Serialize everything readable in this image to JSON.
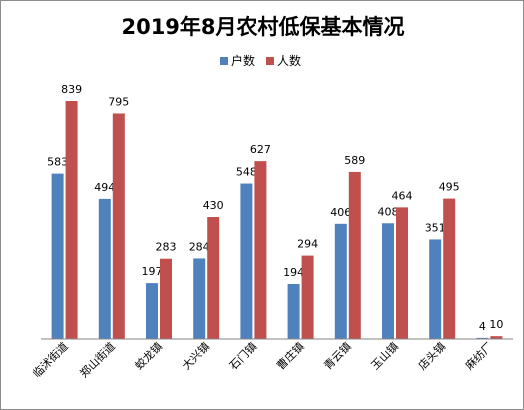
{
  "chart_data": {
    "type": "bar",
    "title": "2019年8月农村低保基本情况",
    "categories": [
      "临沭街道",
      "郑山街道",
      "蛟龙镇",
      "大兴镇",
      "石门镇",
      "曹庄镇",
      "青云镇",
      "玉山镇",
      "店头镇",
      "麻纺厂"
    ],
    "series": [
      {
        "name": "户数",
        "color": "#4F81BD",
        "values": [
          583,
          494,
          197,
          284,
          548,
          194,
          406,
          408,
          351,
          4
        ]
      },
      {
        "name": "人数",
        "color": "#C0504D",
        "values": [
          839,
          795,
          283,
          430,
          627,
          294,
          589,
          464,
          495,
          10
        ]
      }
    ],
    "ylim": [
      0,
      900
    ],
    "grid": false,
    "legend_position": "top-center",
    "data_labels": true
  }
}
